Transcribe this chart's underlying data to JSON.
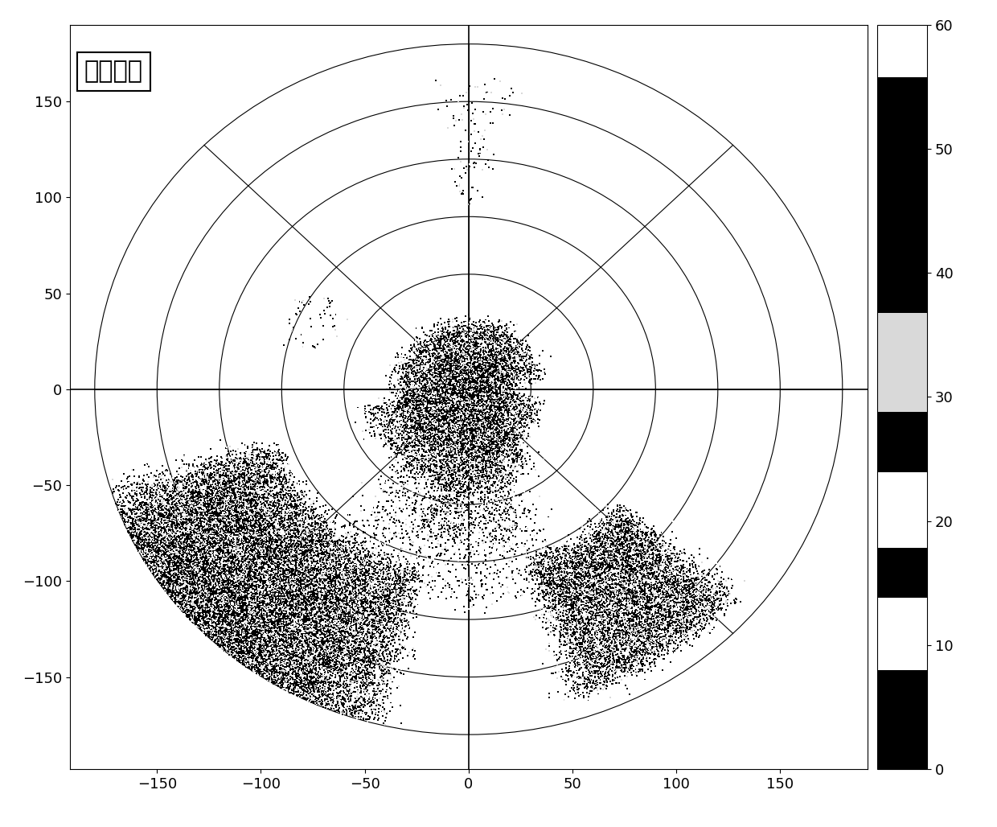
{
  "title": "原始数据",
  "xlim": [
    -192,
    192
  ],
  "ylim": [
    -198,
    190
  ],
  "xticks": [
    -150,
    -100,
    -50,
    0,
    50,
    100,
    150
  ],
  "yticks": [
    -150,
    -100,
    -50,
    0,
    50,
    100,
    150
  ],
  "range_rings": [
    30,
    60,
    90,
    120,
    150,
    180
  ],
  "radial_angles_deg": [
    0,
    45,
    90,
    135,
    180,
    225,
    270,
    315
  ],
  "max_range": 180,
  "colorbar_ticks": [
    0,
    10,
    20,
    30,
    40,
    50,
    60
  ],
  "bg_color": "#ffffff",
  "random_seed": 42,
  "font_size_title": 22,
  "font_size_ticks": 13,
  "font_size_cbar": 13
}
